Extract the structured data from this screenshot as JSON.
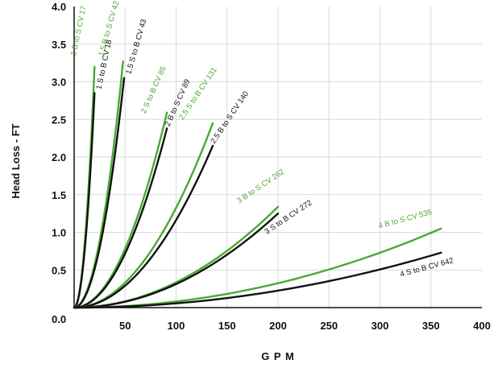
{
  "chart_data": {
    "type": "line",
    "title": "",
    "xlabel": "G P M",
    "ylabel": "Head Loss - FT",
    "xlim": [
      0,
      400
    ],
    "ylim": [
      0,
      4.0
    ],
    "x_ticks": [
      "50",
      "100",
      "150",
      "200",
      "250",
      "300",
      "350",
      "400"
    ],
    "y_ticks": [
      "0.0",
      "0.5",
      "1.0",
      "1.5",
      "2.0",
      "2.5",
      "3.0",
      "3.5",
      "4.0"
    ],
    "grid": true,
    "colors": {
      "green": "#4aa832",
      "black": "#111111",
      "grid": "#d9d9d9",
      "frame": "#111111"
    },
    "series": [
      {
        "name": "1 B to S CV 17",
        "color": "green",
        "cv": 17,
        "x_end": 20,
        "y_end": 3.2
      },
      {
        "name": "1 S to B CV 18",
        "color": "black",
        "cv": 18,
        "x_end": 20,
        "y_end": 2.85
      },
      {
        "name": "1.5 B to S CV 42",
        "color": "green",
        "cv": 42,
        "x_end": 48,
        "y_end": 3.27
      },
      {
        "name": "1.5 S to B CV 43",
        "color": "black",
        "cv": 43,
        "x_end": 49,
        "y_end": 3.05
      },
      {
        "name": "2 S to B CV 85",
        "color": "green",
        "cv": 85,
        "x_end": 91,
        "y_end": 2.59
      },
      {
        "name": "2 B to S CV 89",
        "color": "black",
        "cv": 89,
        "x_end": 91,
        "y_end": 2.38
      },
      {
        "name": "2.5 S to B CV 131",
        "color": "green",
        "cv": 131,
        "x_end": 136,
        "y_end": 2.45
      },
      {
        "name": "2.5 B to S CV 140",
        "color": "black",
        "cv": 140,
        "x_end": 136,
        "y_end": 2.15
      },
      {
        "name": "3 B to S CV 262",
        "color": "green",
        "cv": 262,
        "x_end": 200,
        "y_end": 1.34
      },
      {
        "name": "3 S to B CV 272",
        "color": "black",
        "cv": 272,
        "x_end": 200,
        "y_end": 1.25
      },
      {
        "name": "4 B to S CV 535",
        "color": "green",
        "cv": 535,
        "x_end": 360,
        "y_end": 1.05
      },
      {
        "name": "4 S to B CV 642",
        "color": "black",
        "cv": 642,
        "x_end": 360,
        "y_end": 0.73
      }
    ]
  }
}
